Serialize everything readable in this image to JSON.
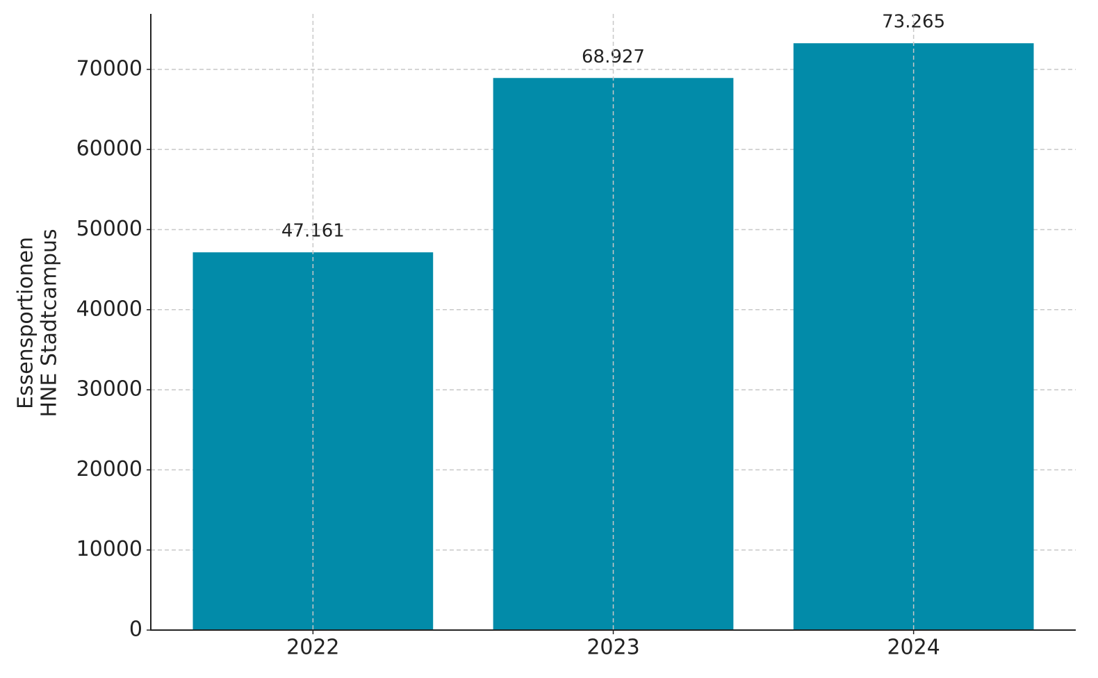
{
  "chart_data": {
    "type": "bar",
    "ylabel": [
      "Essensportionen",
      "HNE Stadtcampus"
    ],
    "categories": [
      "2022",
      "2023",
      "2024"
    ],
    "values": [
      47161,
      68927,
      73265
    ],
    "value_labels": [
      "47.161",
      "68.927",
      "73.265"
    ],
    "color": "#028ba9",
    "ylim": [
      0,
      76928
    ],
    "yticks": [
      0,
      10000,
      20000,
      30000,
      40000,
      50000,
      60000,
      70000
    ],
    "grid": true
  }
}
